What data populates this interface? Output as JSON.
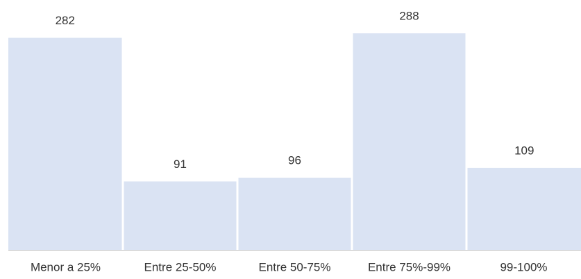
{
  "chart_data": {
    "type": "bar",
    "categories": [
      "Menor a 25%",
      "Entre 25-50%",
      "Entre 50-75%",
      "Entre 75%-99%",
      "99-100%"
    ],
    "values": [
      282,
      91,
      96,
      288,
      109
    ],
    "color": "#dae3f3",
    "ylim": [
      0,
      300
    ]
  }
}
